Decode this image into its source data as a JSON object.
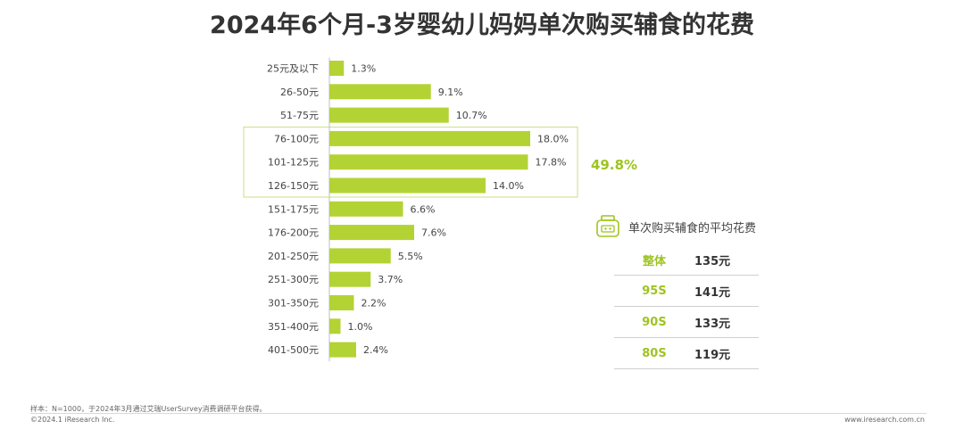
{
  "chart_data": {
    "type": "bar",
    "orientation": "horizontal",
    "title": "2024年6个月-3岁婴幼儿妈妈单次购买辅食的花费",
    "categories": [
      "25元及以下",
      "26-50元",
      "51-75元",
      "76-100元",
      "101-125元",
      "126-150元",
      "151-175元",
      "176-200元",
      "201-250元",
      "251-300元",
      "301-350元",
      "351-400元",
      "401-500元"
    ],
    "values": [
      1.3,
      9.1,
      10.7,
      18.0,
      17.8,
      14.0,
      6.6,
      7.6,
      5.5,
      3.7,
      2.2,
      1.0,
      2.4
    ],
    "value_labels": [
      "1.3%",
      "9.1%",
      "10.7%",
      "18.0%",
      "17.8%",
      "14.0%",
      "6.6%",
      "7.6%",
      "5.5%",
      "3.7%",
      "2.2%",
      "1.0%",
      "2.4%"
    ],
    "bar_color": "#b3d334",
    "highlight": {
      "from_index": 3,
      "to_index": 5,
      "label": "49.8%",
      "color": "#9ec41f"
    },
    "legend": "none",
    "grid": false
  },
  "average_panel": {
    "title": "单次购买辅食的平均花费",
    "icon": "baby-food-jar-icon",
    "rows": [
      {
        "label": "整体",
        "value": "135元"
      },
      {
        "label": "95S",
        "value": "141元"
      },
      {
        "label": "90S",
        "value": "133元"
      },
      {
        "label": "80S",
        "value": "119元"
      }
    ]
  },
  "footer": {
    "note": "样本：N=1000，于2024年3月通过艾瑞UserSurvey消费调研平台获得。",
    "copyright": "©2024.1 iResearch Inc.",
    "url": "www.iresearch.com.cn"
  },
  "colors": {
    "accent": "#9ec41f",
    "text": "#333333"
  }
}
